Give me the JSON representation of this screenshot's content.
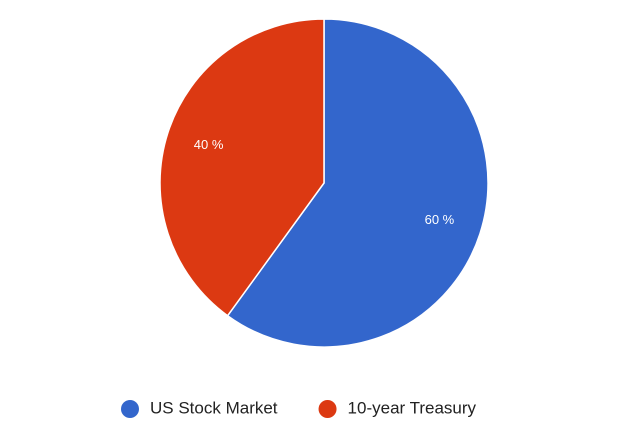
{
  "chart_data": {
    "type": "pie",
    "categories": [
      "US Stock Market",
      "10-year Treasury"
    ],
    "values": [
      60,
      40
    ],
    "value_labels": [
      "60 %",
      "40 %"
    ],
    "colors": [
      "#3366cc",
      "#dc3912"
    ],
    "legend": "bottom"
  }
}
